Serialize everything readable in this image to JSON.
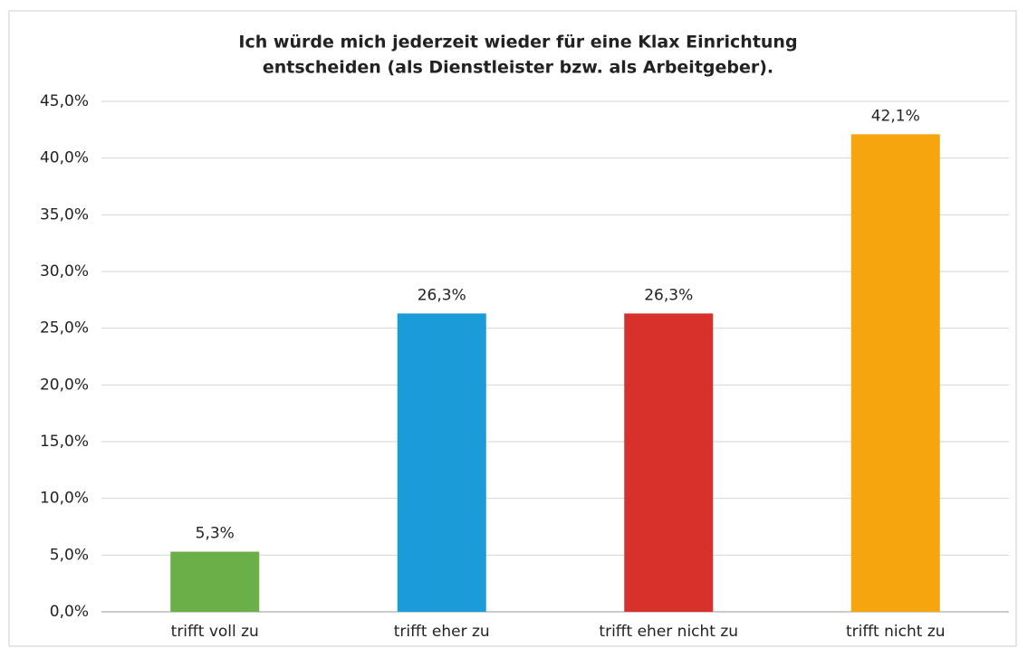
{
  "chart_data": {
    "type": "bar",
    "title": [
      "Ich würde mich jederzeit wieder für eine Klax Einrichtung",
      "entscheiden (als Dienstleister bzw. als Arbeitgeber)."
    ],
    "categories": [
      "trifft voll zu",
      "trifft eher zu",
      "trifft eher nicht zu",
      "trifft nicht zu"
    ],
    "values": [
      5.3,
      26.3,
      26.3,
      42.1
    ],
    "value_labels": [
      "5,3%",
      "26,3%",
      "26,3%",
      "42,1%"
    ],
    "colors": [
      "#6aaf48",
      "#1b9bd7",
      "#d8312b",
      "#f6a50f"
    ],
    "ylim": [
      0,
      45
    ],
    "yticks": [
      {
        "value": 0,
        "label": "0,0%"
      },
      {
        "value": 5,
        "label": "5,0%"
      },
      {
        "value": 10,
        "label": "10,0%"
      },
      {
        "value": 15,
        "label": "15,0%"
      },
      {
        "value": 20,
        "label": "20,0%"
      },
      {
        "value": 25,
        "label": "25,0%"
      },
      {
        "value": 30,
        "label": "30,0%"
      },
      {
        "value": 35,
        "label": "35,0%"
      },
      {
        "value": 40,
        "label": "40,0%"
      },
      {
        "value": 45,
        "label": "45,0%"
      }
    ],
    "grid": true
  }
}
